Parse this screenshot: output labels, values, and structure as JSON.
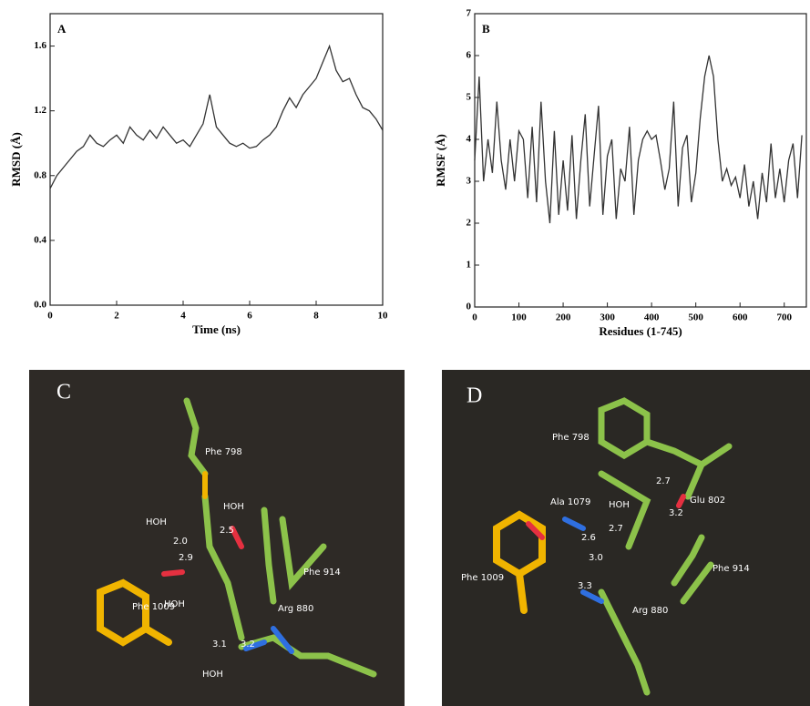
{
  "chart_data": [
    {
      "type": "line",
      "panel_label": "A",
      "xlabel": "Time (ns)",
      "ylabel": "RMSD (Å)",
      "color": "#333333",
      "x": [
        0,
        0.2,
        0.4,
        0.6,
        0.8,
        1.0,
        1.2,
        1.4,
        1.6,
        1.8,
        2.0,
        2.2,
        2.4,
        2.6,
        2.8,
        3.0,
        3.2,
        3.4,
        3.6,
        3.8,
        4.0,
        4.2,
        4.4,
        4.6,
        4.8,
        5.0,
        5.2,
        5.4,
        5.6,
        5.8,
        6.0,
        6.2,
        6.4,
        6.6,
        6.8,
        7.0,
        7.2,
        7.4,
        7.6,
        7.8,
        8.0,
        8.2,
        8.4,
        8.6,
        8.8,
        9.0,
        9.2,
        9.4,
        9.6,
        9.8,
        10
      ],
      "values": [
        0.72,
        0.8,
        0.85,
        0.9,
        0.95,
        0.98,
        1.05,
        1.0,
        0.98,
        1.02,
        1.05,
        1.0,
        1.1,
        1.05,
        1.02,
        1.08,
        1.03,
        1.1,
        1.05,
        1.0,
        1.02,
        0.98,
        1.05,
        1.12,
        1.3,
        1.1,
        1.05,
        1.0,
        0.98,
        1.0,
        0.97,
        0.98,
        1.02,
        1.05,
        1.1,
        1.2,
        1.28,
        1.22,
        1.3,
        1.35,
        1.4,
        1.5,
        1.6,
        1.45,
        1.38,
        1.4,
        1.3,
        1.22,
        1.2,
        1.15,
        1.08
      ],
      "xlim": [
        0,
        10
      ],
      "xticks": [
        0,
        2,
        4,
        6,
        8,
        10
      ],
      "ylim": [
        0,
        1.8
      ],
      "yticks": [
        {
          "value": 0,
          "label": "0.0"
        },
        0.4,
        0.8,
        1.2,
        1.6
      ]
    },
    {
      "type": "line",
      "panel_label": "B",
      "xlabel": "Residues (1-745)",
      "ylabel": "RMSF (Å)",
      "color": "#333333",
      "x": [
        0,
        10,
        20,
        30,
        40,
        50,
        60,
        70,
        80,
        90,
        100,
        110,
        120,
        130,
        140,
        150,
        160,
        170,
        180,
        190,
        200,
        210,
        220,
        230,
        240,
        250,
        260,
        270,
        280,
        290,
        300,
        310,
        320,
        330,
        340,
        350,
        360,
        370,
        380,
        390,
        400,
        410,
        420,
        430,
        440,
        450,
        460,
        470,
        480,
        490,
        500,
        510,
        520,
        530,
        540,
        550,
        560,
        570,
        580,
        590,
        600,
        610,
        620,
        630,
        640,
        650,
        660,
        670,
        680,
        690,
        700,
        710,
        720,
        730,
        740
      ],
      "values": [
        3.5,
        5.5,
        3.0,
        4.0,
        3.2,
        4.9,
        3.5,
        2.8,
        4.0,
        3.0,
        4.2,
        4.0,
        2.6,
        4.3,
        2.5,
        4.9,
        3.0,
        2.0,
        4.2,
        2.2,
        3.5,
        2.3,
        4.1,
        2.1,
        3.5,
        4.6,
        2.4,
        3.6,
        4.8,
        2.2,
        3.6,
        4.0,
        2.1,
        3.3,
        3.0,
        4.3,
        2.2,
        3.5,
        4.0,
        4.2,
        4.0,
        4.1,
        3.5,
        2.8,
        3.3,
        4.9,
        2.4,
        3.8,
        4.1,
        2.5,
        3.2,
        4.5,
        5.5,
        6.0,
        5.5,
        4.0,
        3.0,
        3.3,
        2.9,
        3.1,
        2.6,
        3.4,
        2.4,
        3.0,
        2.1,
        3.2,
        2.5,
        3.9,
        2.6,
        3.3,
        2.5,
        3.5,
        3.9,
        2.6,
        4.1
      ],
      "xlim": [
        0,
        750
      ],
      "xticks": [
        0,
        100,
        200,
        300,
        400,
        500,
        600,
        700
      ],
      "ylim": [
        0,
        7
      ],
      "yticks": [
        0,
        1,
        2,
        3,
        4,
        5,
        6,
        7
      ]
    }
  ],
  "structures": [
    {
      "panel_label": "C",
      "labels": [
        "Phe 798",
        "HOH",
        "HOH",
        "2.0",
        "2.9",
        "2.5",
        "Phe 914",
        "HOH",
        "3.1",
        "3.2",
        "Arg 880",
        "HOH",
        "Phe 1009"
      ]
    },
    {
      "panel_label": "D",
      "labels": [
        "Phe 798",
        "2.7",
        "Glu 802",
        "3.2",
        "Ala 1079",
        "HOH",
        "2.6",
        "2.7",
        "3.0",
        "Phe 1009",
        "3.3",
        "Phe 914",
        "Arg 880"
      ]
    }
  ]
}
